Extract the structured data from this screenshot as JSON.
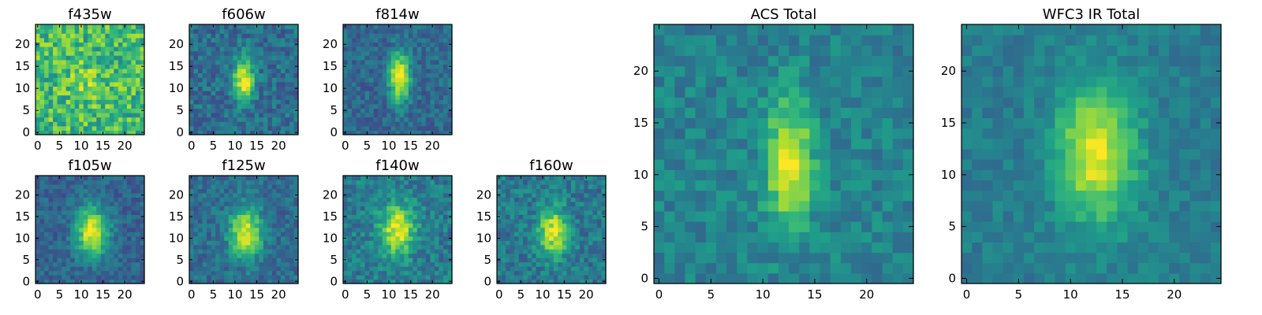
{
  "chart_data": [
    {
      "type": "heatmap",
      "title": "f435w",
      "xlim": [
        0,
        24
      ],
      "ylim": [
        0,
        24
      ],
      "xticks": [
        0,
        5,
        10,
        15,
        20
      ],
      "yticks": [
        0,
        5,
        10,
        15,
        20
      ],
      "grid": false,
      "colormap": "viridis",
      "pixels": 25,
      "source": {
        "x": 11.5,
        "y": 11.5,
        "sx": 3.0,
        "sy": 3.5,
        "amp": 0.12
      },
      "noise": 0.42,
      "base": 0.68,
      "seed": 11
    },
    {
      "type": "heatmap",
      "title": "f606w",
      "xlim": [
        0,
        24
      ],
      "ylim": [
        0,
        24
      ],
      "xticks": [
        0,
        5,
        10,
        15,
        20
      ],
      "yticks": [
        0,
        5,
        10,
        15,
        20
      ],
      "grid": false,
      "colormap": "viridis",
      "pixels": 25,
      "source": {
        "x": 12,
        "y": 12,
        "sx": 1.6,
        "sy": 3.5,
        "amp": 0.65
      },
      "noise": 0.28,
      "base": 0.36,
      "seed": 22
    },
    {
      "type": "heatmap",
      "title": "f814w",
      "xlim": [
        0,
        24
      ],
      "ylim": [
        0,
        24
      ],
      "xticks": [
        0,
        5,
        10,
        15,
        20
      ],
      "yticks": [
        0,
        5,
        10,
        15,
        20
      ],
      "grid": false,
      "colormap": "viridis",
      "pixels": 25,
      "source": {
        "x": 12.5,
        "y": 12.5,
        "sx": 1.6,
        "sy": 3.8,
        "amp": 0.72
      },
      "noise": 0.24,
      "base": 0.34,
      "seed": 33
    },
    {
      "type": "heatmap",
      "title": "f105w",
      "xlim": [
        0,
        24
      ],
      "ylim": [
        0,
        24
      ],
      "xticks": [
        0,
        5,
        10,
        15,
        20
      ],
      "yticks": [
        0,
        5,
        10,
        15,
        20
      ],
      "grid": false,
      "colormap": "viridis",
      "pixels": 25,
      "source": {
        "x": 12.5,
        "y": 11.5,
        "sx": 2.6,
        "sy": 4.0,
        "amp": 0.65
      },
      "noise": 0.22,
      "base": 0.32,
      "seed": 44
    },
    {
      "type": "heatmap",
      "title": "f125w",
      "xlim": [
        0,
        24
      ],
      "ylim": [
        0,
        24
      ],
      "xticks": [
        0,
        5,
        10,
        15,
        20
      ],
      "yticks": [
        0,
        5,
        10,
        15,
        20
      ],
      "grid": false,
      "colormap": "viridis",
      "pixels": 25,
      "source": {
        "x": 12.5,
        "y": 11.5,
        "sx": 2.6,
        "sy": 4.0,
        "amp": 0.6
      },
      "noise": 0.24,
      "base": 0.36,
      "seed": 55
    },
    {
      "type": "heatmap",
      "title": "f140w",
      "xlim": [
        0,
        24
      ],
      "ylim": [
        0,
        24
      ],
      "xticks": [
        0,
        5,
        10,
        15,
        20
      ],
      "yticks": [
        0,
        5,
        10,
        15,
        20
      ],
      "grid": false,
      "colormap": "viridis",
      "pixels": 25,
      "source": {
        "x": 12,
        "y": 12,
        "sx": 2.6,
        "sy": 4.2,
        "amp": 0.55
      },
      "noise": 0.28,
      "base": 0.42,
      "seed": 66
    },
    {
      "type": "heatmap",
      "title": "f160w",
      "xlim": [
        0,
        24
      ],
      "ylim": [
        0,
        24
      ],
      "xticks": [
        0,
        5,
        10,
        15,
        20
      ],
      "yticks": [
        0,
        5,
        10,
        15,
        20
      ],
      "grid": false,
      "colormap": "viridis",
      "pixels": 25,
      "source": {
        "x": 12.5,
        "y": 11.5,
        "sx": 2.4,
        "sy": 3.8,
        "amp": 0.55
      },
      "noise": 0.28,
      "base": 0.4,
      "seed": 77
    },
    {
      "type": "heatmap",
      "title": "ACS Total",
      "xlim": [
        0,
        24
      ],
      "ylim": [
        0,
        24
      ],
      "xticks": [
        0,
        5,
        10,
        15,
        20
      ],
      "yticks": [
        0,
        5,
        10,
        15,
        20
      ],
      "grid": false,
      "colormap": "viridis",
      "pixels": 25,
      "source": {
        "x": 12.5,
        "y": 11,
        "sx": 1.6,
        "sy": 4.2,
        "amp": 0.55
      },
      "noise": 0.22,
      "base": 0.44,
      "seed": 88
    },
    {
      "type": "heatmap",
      "title": "WFC3 IR Total",
      "xlim": [
        0,
        24
      ],
      "ylim": [
        0,
        24
      ],
      "xticks": [
        0,
        5,
        10,
        15,
        20
      ],
      "yticks": [
        0,
        5,
        10,
        15,
        20
      ],
      "grid": false,
      "colormap": "viridis",
      "pixels": 25,
      "source": {
        "x": 12.5,
        "y": 12,
        "sx": 2.6,
        "sy": 4.6,
        "amp": 0.55
      },
      "noise": 0.16,
      "base": 0.42,
      "seed": 99
    }
  ]
}
